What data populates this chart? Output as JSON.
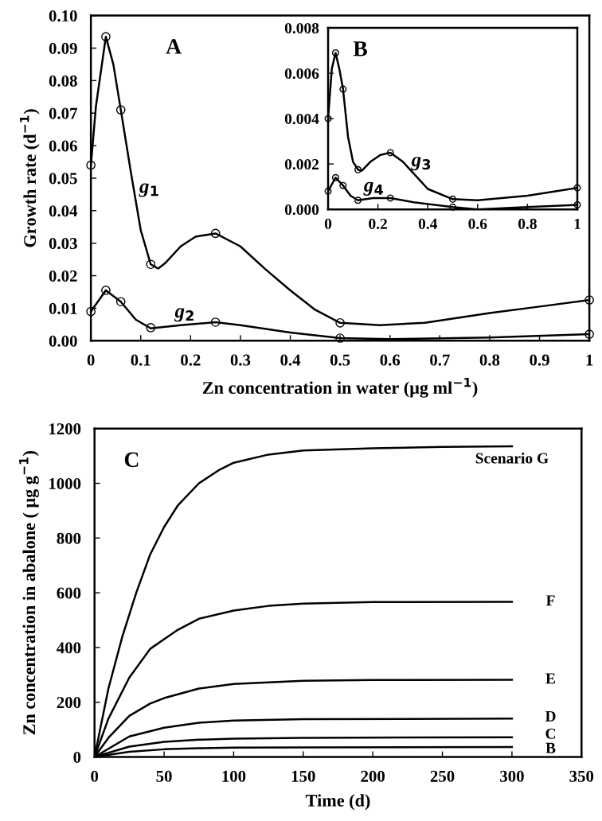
{
  "chart_data": [
    {
      "type": "line",
      "xlabel": "Zn concentration in water (μg ml$^{−1}$)",
      "ylabel": "Growth rate (d$^{−1}$)",
      "annotations": [
        "A"
      ],
      "grid": false,
      "legend": false,
      "xlim": [
        0,
        1
      ],
      "xticks": [
        0,
        0.1,
        0.2,
        0.3,
        0.4,
        0.5,
        0.6,
        0.7,
        0.8,
        0.9,
        1
      ],
      "ylim": [
        0,
        0.1
      ],
      "yticks": [
        {
          "value": 0,
          "label": "0.00"
        },
        {
          "value": 0.01,
          "label": "0.01"
        },
        {
          "value": 0.02,
          "label": "0.02"
        },
        {
          "value": 0.03,
          "label": "0.03"
        },
        {
          "value": 0.04,
          "label": "0.04"
        },
        {
          "value": 0.05,
          "label": "0.05"
        },
        {
          "value": 0.06,
          "label": "0.06"
        },
        {
          "value": 0.07,
          "label": "0.07"
        },
        {
          "value": 0.08,
          "label": "0.08"
        },
        {
          "value": 0.09,
          "label": "0.09"
        },
        {
          "value": 0.1,
          "label": "0.10"
        }
      ],
      "series": [
        {
          "type": "line",
          "name": "g$_{1}$",
          "color": "#000000",
          "x": [
            0,
            0.01,
            0.03,
            0.045,
            0.06,
            0.08,
            0.1,
            0.12,
            0.135,
            0.15,
            0.18,
            0.21,
            0.25,
            0.3,
            0.35,
            0.4,
            0.45,
            0.5,
            0.58,
            0.67,
            0.8,
            0.9,
            1
          ],
          "values": [
            0.054,
            0.072,
            0.0935,
            0.085,
            0.071,
            0.052,
            0.034,
            0.0235,
            0.0222,
            0.024,
            0.029,
            0.032,
            0.033,
            0.029,
            0.022,
            0.0155,
            0.0095,
            0.0055,
            0.0048,
            0.0055,
            0.0085,
            0.0105,
            0.0125
          ]
        },
        {
          "type": "scatter",
          "marker": "circle",
          "color": "#000000",
          "x": [
            0,
            0.03,
            0.06,
            0.12,
            0.25,
            0.5,
            1
          ],
          "values": [
            0.054,
            0.0935,
            0.071,
            0.0235,
            0.033,
            0.0055,
            0.0125
          ]
        },
        {
          "type": "line",
          "name": "g$_{2}$",
          "color": "#000000",
          "x": [
            0,
            0.03,
            0.06,
            0.09,
            0.12,
            0.18,
            0.25,
            0.3,
            0.4,
            0.5,
            0.6,
            0.8,
            1
          ],
          "values": [
            0.009,
            0.0155,
            0.012,
            0.0065,
            0.0038,
            0.0048,
            0.0057,
            0.0048,
            0.0025,
            0.0008,
            0.0005,
            0.001,
            0.002
          ]
        },
        {
          "type": "scatter",
          "marker": "circle",
          "color": "#000000",
          "x": [
            0,
            0.03,
            0.06,
            0.12,
            0.25,
            0.5,
            1
          ],
          "values": [
            0.009,
            0.0155,
            0.012,
            0.004,
            0.0057,
            0.0008,
            0.002
          ]
        }
      ]
    },
    {
      "type": "line",
      "annotations": [
        "B"
      ],
      "grid": false,
      "legend": false,
      "xlim": [
        0,
        1
      ],
      "xticks": [
        0,
        0.2,
        0.4,
        0.6,
        0.8,
        1
      ],
      "ylim": [
        0,
        0.008
      ],
      "yticks": [
        {
          "value": 0,
          "label": "0.000"
        },
        {
          "value": 0.002,
          "label": "0.002"
        },
        {
          "value": 0.004,
          "label": "0.004"
        },
        {
          "value": 0.006,
          "label": "0.006"
        },
        {
          "value": 0.008,
          "label": "0.008"
        }
      ],
      "series": [
        {
          "type": "line",
          "name": "g$_{3}$",
          "color": "#000000",
          "x": [
            0,
            0.015,
            0.03,
            0.045,
            0.06,
            0.08,
            0.1,
            0.12,
            0.135,
            0.17,
            0.21,
            0.25,
            0.3,
            0.35,
            0.4,
            0.5,
            0.6,
            0.8,
            1
          ],
          "values": [
            0.004,
            0.0062,
            0.0069,
            0.0062,
            0.0053,
            0.0032,
            0.0021,
            0.00175,
            0.0017,
            0.0021,
            0.0024,
            0.0025,
            0.0021,
            0.0015,
            0.0009,
            0.00045,
            0.0004,
            0.0006,
            0.00095
          ]
        },
        {
          "type": "scatter",
          "marker": "circle",
          "color": "#000000",
          "x": [
            0,
            0.03,
            0.06,
            0.12,
            0.25,
            0.5,
            1
          ],
          "values": [
            0.004,
            0.0069,
            0.0053,
            0.00175,
            0.0025,
            0.00045,
            0.00095
          ]
        },
        {
          "type": "line",
          "name": "g$_{4}$",
          "color": "#000000",
          "x": [
            0,
            0.03,
            0.06,
            0.09,
            0.12,
            0.18,
            0.25,
            0.35,
            0.5,
            0.6,
            0.8,
            1
          ],
          "values": [
            0.0008,
            0.0014,
            0.00105,
            0.0006,
            0.0004,
            0.0005,
            0.0005,
            0.0003,
            0.0001,
            0,
            0.0001,
            0.0002
          ]
        },
        {
          "type": "scatter",
          "marker": "circle",
          "color": "#000000",
          "x": [
            0,
            0.03,
            0.06,
            0.12,
            0.25,
            0.5,
            1
          ],
          "values": [
            0.0008,
            0.0014,
            0.00105,
            0.0004,
            0.0005,
            0.0001,
            0.0002
          ]
        }
      ]
    },
    {
      "type": "line",
      "xlabel": "Time (d)",
      "ylabel": "Zn concentration in abalone ( μg g$^{−1}$)",
      "annotations": [
        "C"
      ],
      "grid": false,
      "legend": false,
      "xlim": [
        0,
        350
      ],
      "xticks": [
        0,
        50,
        100,
        150,
        200,
        250,
        300,
        350
      ],
      "ylim": [
        0,
        1200
      ],
      "yticks": [
        0,
        200,
        400,
        600,
        800,
        1000,
        1200
      ],
      "series": [
        {
          "name": "Scenario G",
          "color": "#000000",
          "x": [
            0,
            10,
            20,
            30,
            40,
            50,
            60,
            75,
            90,
            100,
            125,
            150,
            200,
            250,
            300
          ],
          "values": [
            0,
            250,
            440,
            600,
            740,
            840,
            920,
            1000,
            1050,
            1075,
            1105,
            1120,
            1128,
            1133,
            1135
          ]
        },
        {
          "name": "F",
          "color": "#000000",
          "x": [
            0,
            10,
            25,
            40,
            50,
            60,
            75,
            100,
            125,
            150,
            200,
            300
          ],
          "values": [
            0,
            140,
            290,
            395,
            430,
            465,
            505,
            535,
            552,
            560,
            566,
            567
          ]
        },
        {
          "name": "E",
          "color": "#000000",
          "x": [
            0,
            10,
            25,
            40,
            50,
            75,
            100,
            150,
            200,
            300
          ],
          "values": [
            0,
            70,
            150,
            195,
            215,
            250,
            267,
            278,
            281,
            282
          ]
        },
        {
          "name": "D",
          "color": "#000000",
          "x": [
            0,
            25,
            50,
            75,
            100,
            150,
            300
          ],
          "values": [
            0,
            75,
            107,
            125,
            133,
            138,
            140
          ]
        },
        {
          "name": "C",
          "color": "#000000",
          "x": [
            0,
            25,
            50,
            75,
            100,
            150,
            300
          ],
          "values": [
            0,
            38,
            55,
            63,
            67,
            70,
            72
          ]
        },
        {
          "name": "B",
          "color": "#000000",
          "x": [
            0,
            25,
            50,
            75,
            100,
            150,
            300
          ],
          "values": [
            0,
            19,
            28,
            32,
            34,
            35,
            36
          ]
        }
      ]
    }
  ]
}
